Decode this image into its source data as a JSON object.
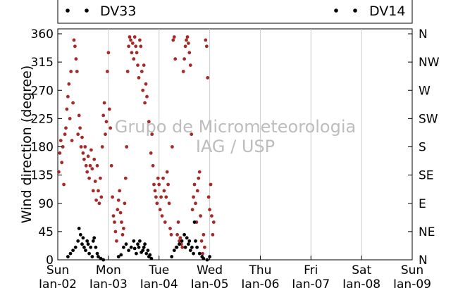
{
  "chart_data": {
    "type": "scatter",
    "ylabel": "Wind direction (degree)",
    "ylim": [
      0,
      360
    ],
    "yticks": [
      0,
      45,
      90,
      135,
      180,
      225,
      270,
      315,
      360
    ],
    "right_axis_labels": [
      "N",
      "NE",
      "E",
      "SE",
      "S",
      "SW",
      "W",
      "NW",
      "N"
    ],
    "xlim_days": [
      0,
      7
    ],
    "x_tick_labels": [
      {
        "day": "Sun",
        "date": "Jan-02"
      },
      {
        "day": "Mon",
        "date": "Jan-03"
      },
      {
        "day": "Tue",
        "date": "Jan-04"
      },
      {
        "day": "Wed",
        "date": "Jan-05"
      },
      {
        "day": "Thu",
        "date": "Jan-06"
      },
      {
        "day": "Fri",
        "date": "Jan-07"
      },
      {
        "day": "Sat",
        "date": "Jan-08"
      },
      {
        "day": "Sun",
        "date": "Jan-09"
      }
    ],
    "grid": "vertical",
    "legend": "top",
    "watermark": [
      "Grupo de Micrometeorologia",
      "IAG / USP"
    ],
    "series": [
      {
        "name": "DV33",
        "color": "#a52a2a",
        "points": [
          [
            0.02,
            140
          ],
          [
            0.04,
            170
          ],
          [
            0.06,
            190
          ],
          [
            0.08,
            155
          ],
          [
            0.1,
            180
          ],
          [
            0.12,
            120
          ],
          [
            0.14,
            200
          ],
          [
            0.16,
            210
          ],
          [
            0.18,
            240
          ],
          [
            0.2,
            260
          ],
          [
            0.22,
            280
          ],
          [
            0.24,
            225
          ],
          [
            0.26,
            300
          ],
          [
            0.28,
            190
          ],
          [
            0.3,
            250
          ],
          [
            0.32,
            350
          ],
          [
            0.34,
            340
          ],
          [
            0.36,
            320
          ],
          [
            0.38,
            300
          ],
          [
            0.4,
            200
          ],
          [
            0.42,
            230
          ],
          [
            0.44,
            210
          ],
          [
            0.46,
            180
          ],
          [
            0.48,
            195
          ],
          [
            0.5,
            170
          ],
          [
            0.52,
            160
          ],
          [
            0.54,
            180
          ],
          [
            0.56,
            150
          ],
          [
            0.58,
            140
          ],
          [
            0.6,
            165
          ],
          [
            0.62,
            130
          ],
          [
            0.64,
            150
          ],
          [
            0.66,
            175
          ],
          [
            0.68,
            145
          ],
          [
            0.7,
            110
          ],
          [
            0.72,
            160
          ],
          [
            0.74,
            125
          ],
          [
            0.76,
            95
          ],
          [
            0.78,
            150
          ],
          [
            0.8,
            110
          ],
          [
            0.82,
            90
          ],
          [
            0.84,
            130
          ],
          [
            0.86,
            100
          ],
          [
            0.88,
            180
          ],
          [
            0.9,
            230
          ],
          [
            0.92,
            250
          ],
          [
            0.94,
            200
          ],
          [
            0.96,
            220
          ],
          [
            0.98,
            300
          ],
          [
            1.0,
            330
          ],
          [
            1.02,
            240
          ],
          [
            1.04,
            210
          ],
          [
            1.06,
            150
          ],
          [
            1.08,
            100
          ],
          [
            1.1,
            70
          ],
          [
            1.12,
            60
          ],
          [
            1.14,
            45
          ],
          [
            1.16,
            30
          ],
          [
            1.18,
            80
          ],
          [
            1.2,
            95
          ],
          [
            1.22,
            110
          ],
          [
            1.24,
            75
          ],
          [
            1.26,
            60
          ],
          [
            1.28,
            40
          ],
          [
            1.3,
            50
          ],
          [
            1.32,
            90
          ],
          [
            1.34,
            130
          ],
          [
            1.36,
            180
          ],
          [
            1.38,
            300
          ],
          [
            1.4,
            340
          ],
          [
            1.42,
            355
          ],
          [
            1.44,
            350
          ],
          [
            1.46,
            330
          ],
          [
            1.48,
            345
          ],
          [
            1.5,
            320
          ],
          [
            1.52,
            355
          ],
          [
            1.54,
            340
          ],
          [
            1.56,
            330
          ],
          [
            1.58,
            310
          ],
          [
            1.6,
            290
          ],
          [
            1.62,
            350
          ],
          [
            1.64,
            340
          ],
          [
            1.66,
            300
          ],
          [
            1.68,
            270
          ],
          [
            1.7,
            310
          ],
          [
            1.72,
            250
          ],
          [
            1.74,
            280
          ],
          [
            1.76,
            260
          ],
          [
            1.8,
            220
          ],
          [
            1.84,
            170
          ],
          [
            1.86,
            200
          ],
          [
            1.88,
            150
          ],
          [
            1.9,
            120
          ],
          [
            1.92,
            110
          ],
          [
            1.94,
            100
          ],
          [
            1.96,
            90
          ],
          [
            1.98,
            130
          ],
          [
            2.0,
            120
          ],
          [
            2.02,
            80
          ],
          [
            2.04,
            100
          ],
          [
            2.06,
            70
          ],
          [
            2.08,
            130
          ],
          [
            2.1,
            110
          ],
          [
            2.12,
            60
          ],
          [
            2.14,
            100
          ],
          [
            2.16,
            140
          ],
          [
            2.18,
            120
          ],
          [
            2.2,
            90
          ],
          [
            2.22,
            50
          ],
          [
            2.24,
            40
          ],
          [
            2.26,
            180
          ],
          [
            2.28,
            350
          ],
          [
            2.3,
            355
          ],
          [
            2.32,
            320
          ],
          [
            2.34,
            20
          ],
          [
            2.36,
            40
          ],
          [
            2.38,
            60
          ],
          [
            2.4,
            30
          ],
          [
            2.42,
            35
          ],
          [
            2.44,
            25
          ],
          [
            2.46,
            20
          ],
          [
            2.48,
            300
          ],
          [
            2.5,
            320
          ],
          [
            2.52,
            340
          ],
          [
            2.54,
            350
          ],
          [
            2.56,
            355
          ],
          [
            2.58,
            345
          ],
          [
            2.6,
            330
          ],
          [
            2.62,
            310
          ],
          [
            2.64,
            200
          ],
          [
            2.66,
            80
          ],
          [
            2.68,
            100
          ],
          [
            2.7,
            120
          ],
          [
            2.72,
            90
          ],
          [
            2.74,
            60
          ],
          [
            2.76,
            110
          ],
          [
            2.78,
            130
          ],
          [
            2.8,
            140
          ],
          [
            2.82,
            70
          ],
          [
            2.84,
            30
          ],
          [
            2.86,
            10
          ],
          [
            2.88,
            40
          ],
          [
            2.9,
            20
          ],
          [
            2.92,
            350
          ],
          [
            2.94,
            340
          ],
          [
            2.96,
            290
          ],
          [
            2.98,
            100
          ],
          [
            3.0,
            80
          ],
          [
            3.02,
            120
          ],
          [
            3.04,
            70
          ],
          [
            3.06,
            40
          ],
          [
            3.08,
            60
          ]
        ]
      },
      {
        "name": "DV14",
        "color": "#000000",
        "points": [
          [
            0.2,
            5
          ],
          [
            0.25,
            10
          ],
          [
            0.3,
            15
          ],
          [
            0.35,
            20
          ],
          [
            0.4,
            30
          ],
          [
            0.42,
            50
          ],
          [
            0.45,
            40
          ],
          [
            0.48,
            25
          ],
          [
            0.5,
            35
          ],
          [
            0.52,
            20
          ],
          [
            0.55,
            15
          ],
          [
            0.58,
            30
          ],
          [
            0.6,
            25
          ],
          [
            0.62,
            10
          ],
          [
            0.65,
            20
          ],
          [
            0.68,
            5
          ],
          [
            0.7,
            30
          ],
          [
            0.72,
            35
          ],
          [
            0.75,
            20
          ],
          [
            0.78,
            10
          ],
          [
            0.8,
            5
          ],
          [
            0.85,
            2
          ],
          [
            0.9,
            0
          ],
          [
            1.2,
            5
          ],
          [
            1.25,
            8
          ],
          [
            1.3,
            20
          ],
          [
            1.35,
            25
          ],
          [
            1.4,
            15
          ],
          [
            1.45,
            20
          ],
          [
            1.5,
            30
          ],
          [
            1.52,
            18
          ],
          [
            1.55,
            10
          ],
          [
            1.58,
            25
          ],
          [
            1.6,
            20
          ],
          [
            1.62,
            30
          ],
          [
            1.65,
            12
          ],
          [
            1.68,
            15
          ],
          [
            1.7,
            20
          ],
          [
            1.72,
            25
          ],
          [
            1.75,
            10
          ],
          [
            1.78,
            15
          ],
          [
            1.8,
            5
          ],
          [
            1.82,
            8
          ],
          [
            1.85,
            2
          ],
          [
            2.25,
            5
          ],
          [
            2.3,
            15
          ],
          [
            2.35,
            20
          ],
          [
            2.4,
            25
          ],
          [
            2.45,
            30
          ],
          [
            2.5,
            40
          ],
          [
            2.52,
            20
          ],
          [
            2.55,
            35
          ],
          [
            2.58,
            25
          ],
          [
            2.6,
            30
          ],
          [
            2.62,
            15
          ],
          [
            2.65,
            20
          ],
          [
            2.68,
            10
          ],
          [
            2.7,
            60
          ],
          [
            2.72,
            30
          ],
          [
            2.75,
            20
          ],
          [
            2.8,
            10
          ],
          [
            2.85,
            5
          ],
          [
            2.88,
            2
          ],
          [
            2.95,
            0
          ],
          [
            3.0,
            5
          ]
        ]
      }
    ]
  }
}
